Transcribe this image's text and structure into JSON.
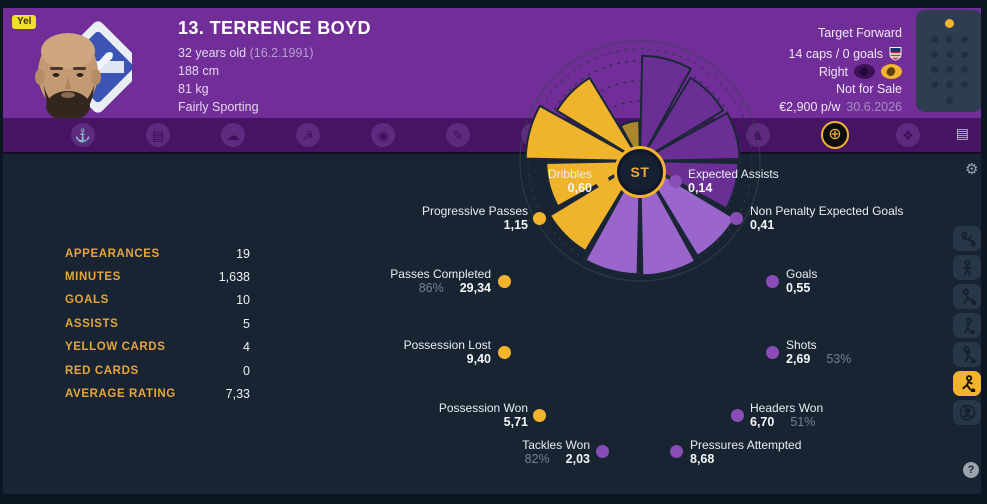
{
  "header": {
    "squad_status_badge": "Yel",
    "player_name": "13. TERRENCE BOYD",
    "age": "32 years old",
    "birthdate": "(16.2.1991)",
    "height": "188 cm",
    "weight": "81 kg",
    "personality": "Fairly Sporting",
    "role": "Target Forward",
    "caps": "14 caps / 0 goals",
    "preferred_foot": "Right",
    "transfer_status": "Not for Sale",
    "wage": "€2,900 p/w",
    "contract_end": "30.6.2026",
    "position_map_highlight": "ST"
  },
  "nav": {
    "items": [
      {
        "name": "anchor-icon",
        "glyph": "⚓",
        "active": false
      },
      {
        "name": "frame-icon",
        "glyph": "▤",
        "active": false
      },
      {
        "name": "cloud-icon",
        "glyph": "☁",
        "active": false
      },
      {
        "name": "hammer-sickle-icon",
        "glyph": "☭",
        "active": false
      },
      {
        "name": "coin-icon",
        "glyph": "◉",
        "active": false
      },
      {
        "name": "pencil-icon",
        "glyph": "✎",
        "active": false
      },
      {
        "name": "helmet-icon",
        "glyph": "◈",
        "active": false
      },
      {
        "name": "burst-icon",
        "glyph": "✱",
        "active": false
      },
      {
        "name": "swirl-icon",
        "glyph": "☁",
        "active": false
      },
      {
        "name": "hat-icon",
        "glyph": "♞",
        "active": false
      },
      {
        "name": "target-icon",
        "glyph": "⊕",
        "active": true
      },
      {
        "name": "fox-icon",
        "glyph": "❖",
        "active": false
      }
    ],
    "notes_glyph": "▤"
  },
  "stats_panel": {
    "rows": [
      {
        "label": "APPEARANCES",
        "value": "19"
      },
      {
        "label": "MINUTES",
        "value": "1,638"
      },
      {
        "label": "GOALS",
        "value": "10"
      },
      {
        "label": "ASSISTS",
        "value": "5"
      },
      {
        "label": "YELLOW CARDS",
        "value": "4"
      },
      {
        "label": "RED CARDS",
        "value": "0"
      },
      {
        "label": "AVERAGE RATING",
        "value": "7,33"
      }
    ]
  },
  "chart_data": {
    "type": "pie",
    "subtype": "pizza-percentile-polar",
    "center_label": "ST",
    "start_bearing_deg": 0,
    "sector_width_deg": 30,
    "max_radius_px": 120,
    "segments": [
      {
        "label": "Expected Assists",
        "value": "0,14",
        "pct": "",
        "fraction": 0.87,
        "color": "#6a2e95",
        "dot": "#8a4cb6"
      },
      {
        "label": "Non Penalty Expected Goals",
        "value": "0,41",
        "pct": "",
        "fraction": 0.8,
        "color": "#6a2e95",
        "dot": "#8a4cb6"
      },
      {
        "label": "Goals",
        "value": "0,55",
        "pct": "",
        "fraction": 0.82,
        "color": "#6a2e95",
        "dot": "#8a4cb6"
      },
      {
        "label": "Shots",
        "value": "2,69",
        "pct": "53%",
        "fraction": 0.81,
        "color": "#6a2e95",
        "dot": "#8a4cb6"
      },
      {
        "label": "Headers Won",
        "value": "6,70",
        "pct": "51%",
        "fraction": 0.92,
        "color": "#9a66cb",
        "dot": "#8a4cb6"
      },
      {
        "label": "Pressures Attempted",
        "value": "8,68",
        "pct": "",
        "fraction": 0.95,
        "color": "#9a66cb",
        "dot": "#8a4cb6"
      },
      {
        "label": "Tackles Won",
        "value": "2,03",
        "pct": "82%",
        "fraction": 0.94,
        "color": "#9a66cb",
        "dot": "#8a4cb6"
      },
      {
        "label": "Possession Won",
        "value": "5,71",
        "pct": "",
        "fraction": 0.87,
        "color": "#f0b32c",
        "dot": "#f2b42d"
      },
      {
        "label": "Possession Lost",
        "value": "9,40",
        "pct": "",
        "fraction": 0.77,
        "color": "#f0b32c",
        "dot": "#f2b42d"
      },
      {
        "label": "Passes Completed",
        "value": "29,34",
        "pct": "86%",
        "fraction": 0.95,
        "color": "#f0b32c",
        "dot": "#f2b42d"
      },
      {
        "label": "Progressive Passes",
        "value": "1,15",
        "pct": "",
        "fraction": 0.8,
        "color": "#f0b32c",
        "dot": "#f2b42d"
      },
      {
        "label": "Dribbles",
        "value": "0,60",
        "pct": "",
        "fraction": 0.3,
        "color": "#a8872e",
        "dot": "#f2b42d"
      }
    ],
    "group_colors": {
      "attacking": "#6a2e95",
      "defending": "#9a66cb",
      "possession": "#f0b32c"
    }
  },
  "sidebar": {
    "icons": [
      {
        "name": "goalkeeper-dive-icon",
        "active": false
      },
      {
        "name": "standing-player-icon",
        "active": false
      },
      {
        "name": "kicking-player-icon",
        "active": false
      },
      {
        "name": "ball-player-icon",
        "active": false
      },
      {
        "name": "dribbling-player-icon",
        "active": false
      },
      {
        "name": "running-player-icon",
        "active": true
      },
      {
        "name": "scout-avatar-icon",
        "active": false
      }
    ]
  },
  "icons": {
    "settings_glyph": "⚙",
    "help_glyph": "?"
  },
  "colors": {
    "header_purple": "#712d98",
    "navbar_purple": "#451564",
    "main_bg": "#182431",
    "accent_yellow": "#f2b42d",
    "stat_label_gold": "#e7a53c"
  }
}
